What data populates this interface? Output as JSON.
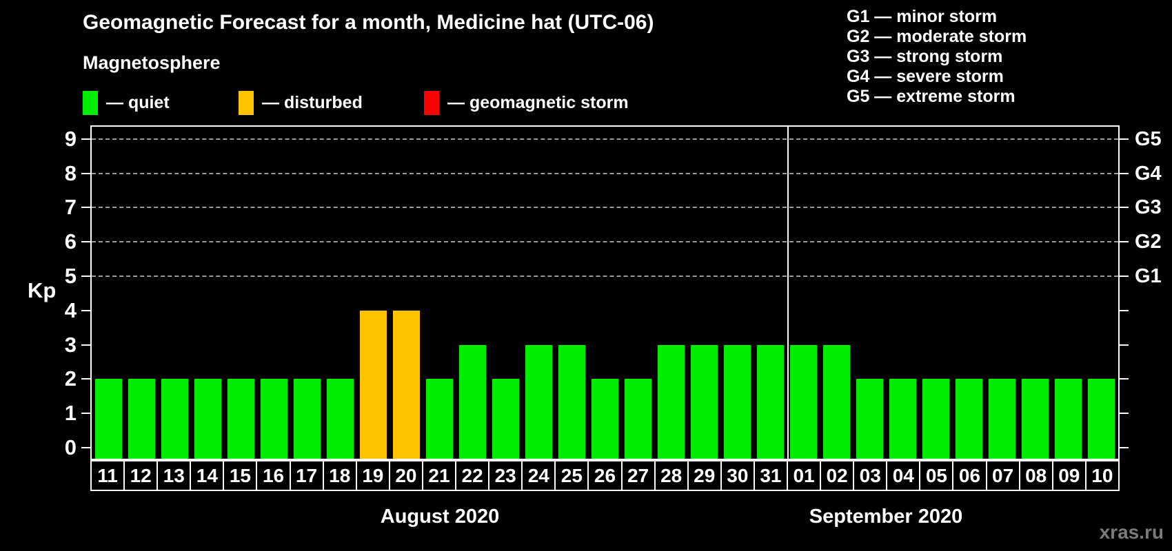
{
  "watermark": "xras.ru",
  "chart_data": {
    "type": "bar",
    "title": "Geomagnetic Forecast for a month, Medicine hat (UTC-06)",
    "subtitle": "Magnetosphere",
    "legend": [
      {
        "status": "quiet",
        "label": "— quiet",
        "color": "#00EE00"
      },
      {
        "status": "disturbed",
        "label": "— disturbed",
        "color": "#FFC300"
      },
      {
        "status": "storm",
        "label": "— geomagnetic storm",
        "color": "#FF0000"
      }
    ],
    "g_legend": [
      "G1 — minor storm",
      "G2 — moderate storm",
      "G3 — strong storm",
      "G4 — severe storm",
      "G5 — extreme storm"
    ],
    "ylabel": "Kp",
    "yticks": [
      0,
      1,
      2,
      3,
      4,
      5,
      6,
      7,
      8,
      9
    ],
    "ylim": [
      0,
      9
    ],
    "grid": "dashed horizontal at Kp 5-9 only",
    "gridlines_kp": [
      5,
      6,
      7,
      8,
      9
    ],
    "right_axis": [
      {
        "kp": 5,
        "label": "G1"
      },
      {
        "kp": 6,
        "label": "G2"
      },
      {
        "kp": 7,
        "label": "G3"
      },
      {
        "kp": 8,
        "label": "G4"
      },
      {
        "kp": 9,
        "label": "G5"
      }
    ],
    "colors": {
      "quiet": "#00EE00",
      "disturbed": "#FFC300",
      "storm": "#FF0000"
    },
    "months": [
      {
        "label": "August 2020",
        "days": 21
      },
      {
        "label": "September 2020",
        "days": 10
      }
    ],
    "days": [
      {
        "day": "11",
        "value": 2,
        "status": "quiet"
      },
      {
        "day": "12",
        "value": 2,
        "status": "quiet"
      },
      {
        "day": "13",
        "value": 2,
        "status": "quiet"
      },
      {
        "day": "14",
        "value": 2,
        "status": "quiet"
      },
      {
        "day": "15",
        "value": 2,
        "status": "quiet"
      },
      {
        "day": "16",
        "value": 2,
        "status": "quiet"
      },
      {
        "day": "17",
        "value": 2,
        "status": "quiet"
      },
      {
        "day": "18",
        "value": 2,
        "status": "quiet"
      },
      {
        "day": "19",
        "value": 4,
        "status": "disturbed"
      },
      {
        "day": "20",
        "value": 4,
        "status": "disturbed"
      },
      {
        "day": "21",
        "value": 2,
        "status": "quiet"
      },
      {
        "day": "22",
        "value": 3,
        "status": "quiet"
      },
      {
        "day": "23",
        "value": 2,
        "status": "quiet"
      },
      {
        "day": "24",
        "value": 3,
        "status": "quiet"
      },
      {
        "day": "25",
        "value": 3,
        "status": "quiet"
      },
      {
        "day": "26",
        "value": 2,
        "status": "quiet"
      },
      {
        "day": "27",
        "value": 2,
        "status": "quiet"
      },
      {
        "day": "28",
        "value": 3,
        "status": "quiet"
      },
      {
        "day": "29",
        "value": 3,
        "status": "quiet"
      },
      {
        "day": "30",
        "value": 3,
        "status": "quiet"
      },
      {
        "day": "31",
        "value": 3,
        "status": "quiet"
      },
      {
        "day": "01",
        "value": 3,
        "status": "quiet"
      },
      {
        "day": "02",
        "value": 3,
        "status": "quiet"
      },
      {
        "day": "03",
        "value": 2,
        "status": "quiet"
      },
      {
        "day": "04",
        "value": 2,
        "status": "quiet"
      },
      {
        "day": "05",
        "value": 2,
        "status": "quiet"
      },
      {
        "day": "06",
        "value": 2,
        "status": "quiet"
      },
      {
        "day": "07",
        "value": 2,
        "status": "quiet"
      },
      {
        "day": "08",
        "value": 2,
        "status": "quiet"
      },
      {
        "day": "09",
        "value": 2,
        "status": "quiet"
      },
      {
        "day": "10",
        "value": 2,
        "status": "quiet"
      }
    ]
  }
}
